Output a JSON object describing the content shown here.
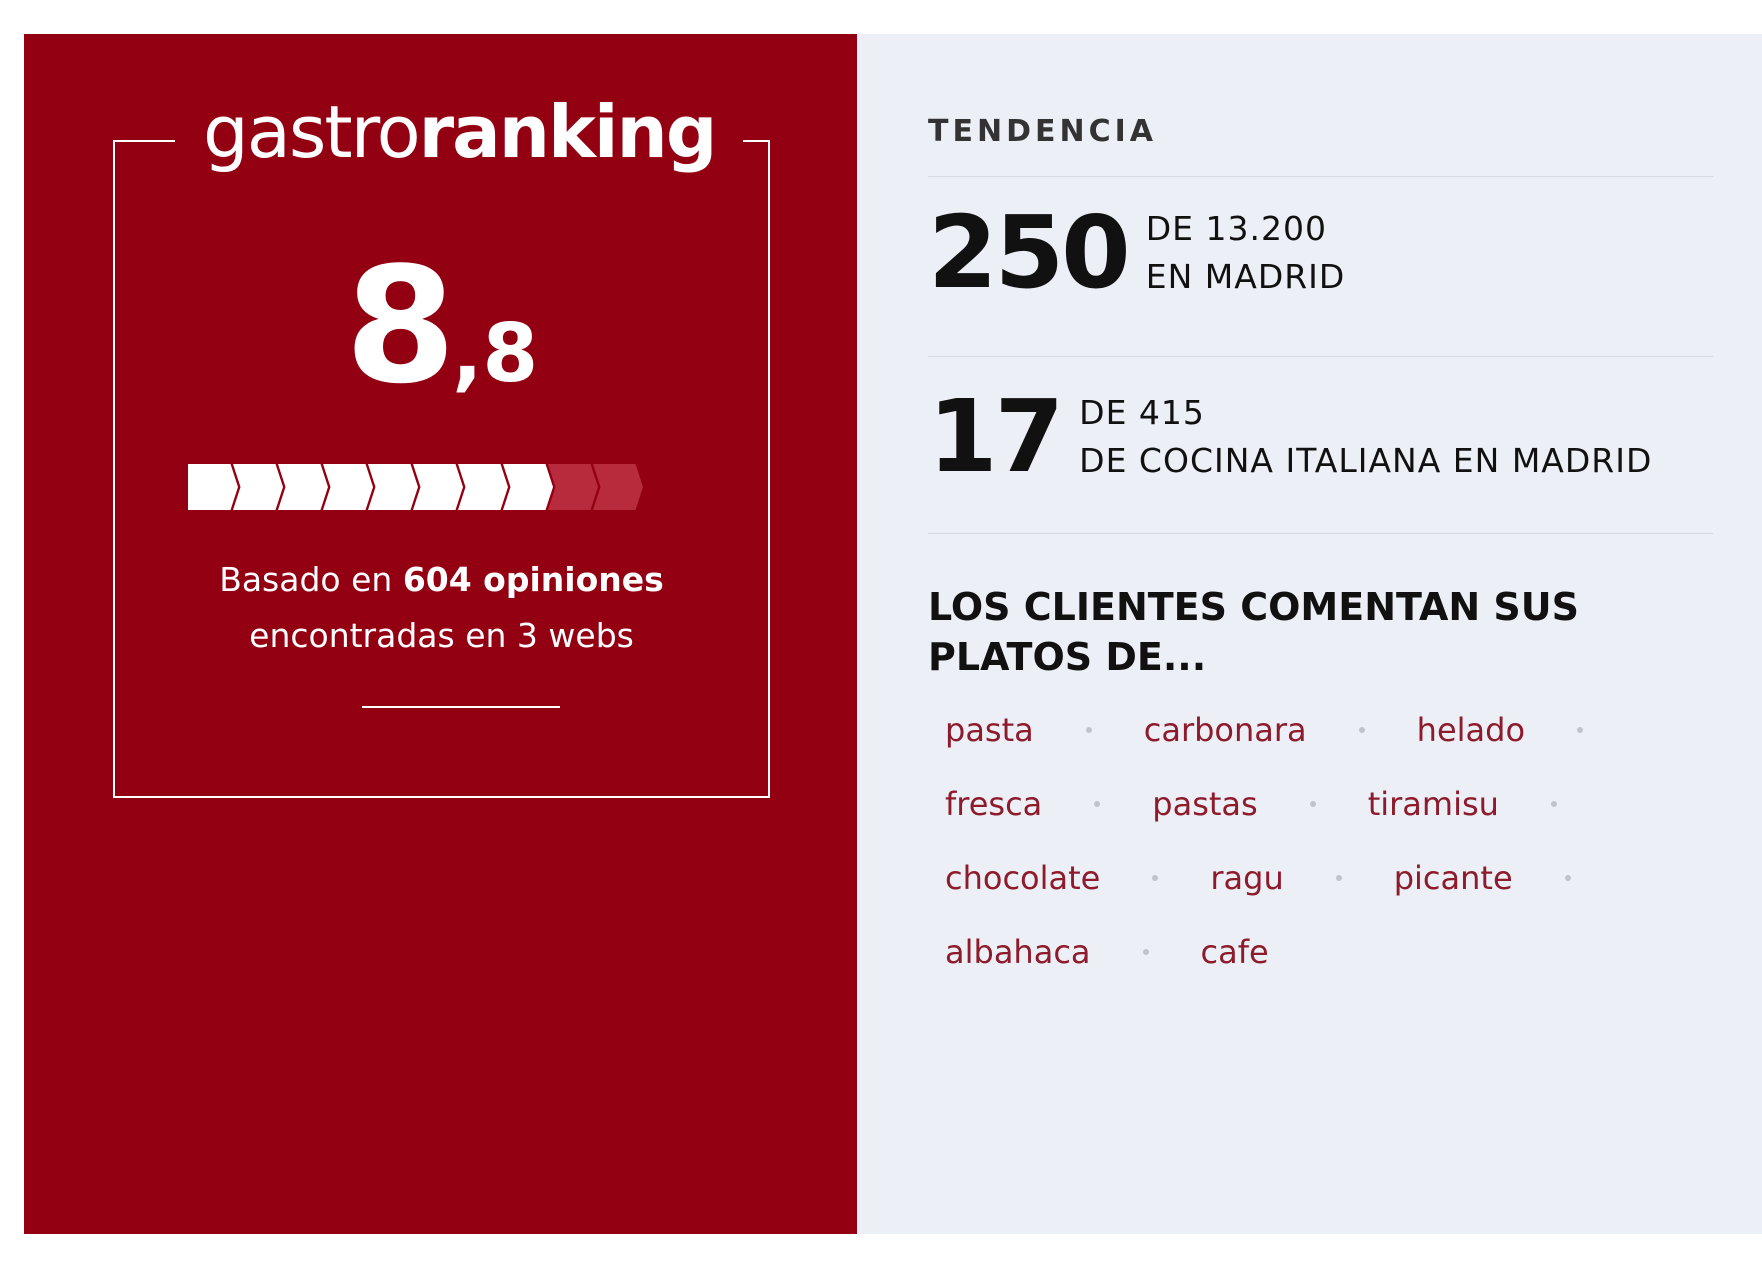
{
  "logo": {
    "light": "gastro",
    "bold": "ranking"
  },
  "score": {
    "integer": "8",
    "decimal": ",8",
    "value": 8.8,
    "max": 10
  },
  "based": {
    "pre": "Basado en ",
    "bold": "604 opiniones",
    "line2": "encontradas en 3 webs"
  },
  "trend": {
    "label": "TENDENCIA",
    "ranks": [
      {
        "number": "250",
        "line1": "DE 13.200",
        "line2": "EN MADRID"
      },
      {
        "number": "17",
        "line1": "DE 415",
        "line2": "DE COCINA ITALIANA EN MADRID"
      }
    ]
  },
  "dishes": {
    "heading": "LOS CLIENTES COMENTAN SUS PLATOS DE...",
    "tags": [
      "pasta",
      "carbonara",
      "helado",
      "fresca",
      "pastas",
      "tiramisu",
      "chocolate",
      "ragu",
      "picante",
      "albahaca",
      "cafe"
    ]
  },
  "colors": {
    "brand": "#930012",
    "panel": "#eceff6",
    "tag": "#8e1b2b"
  }
}
